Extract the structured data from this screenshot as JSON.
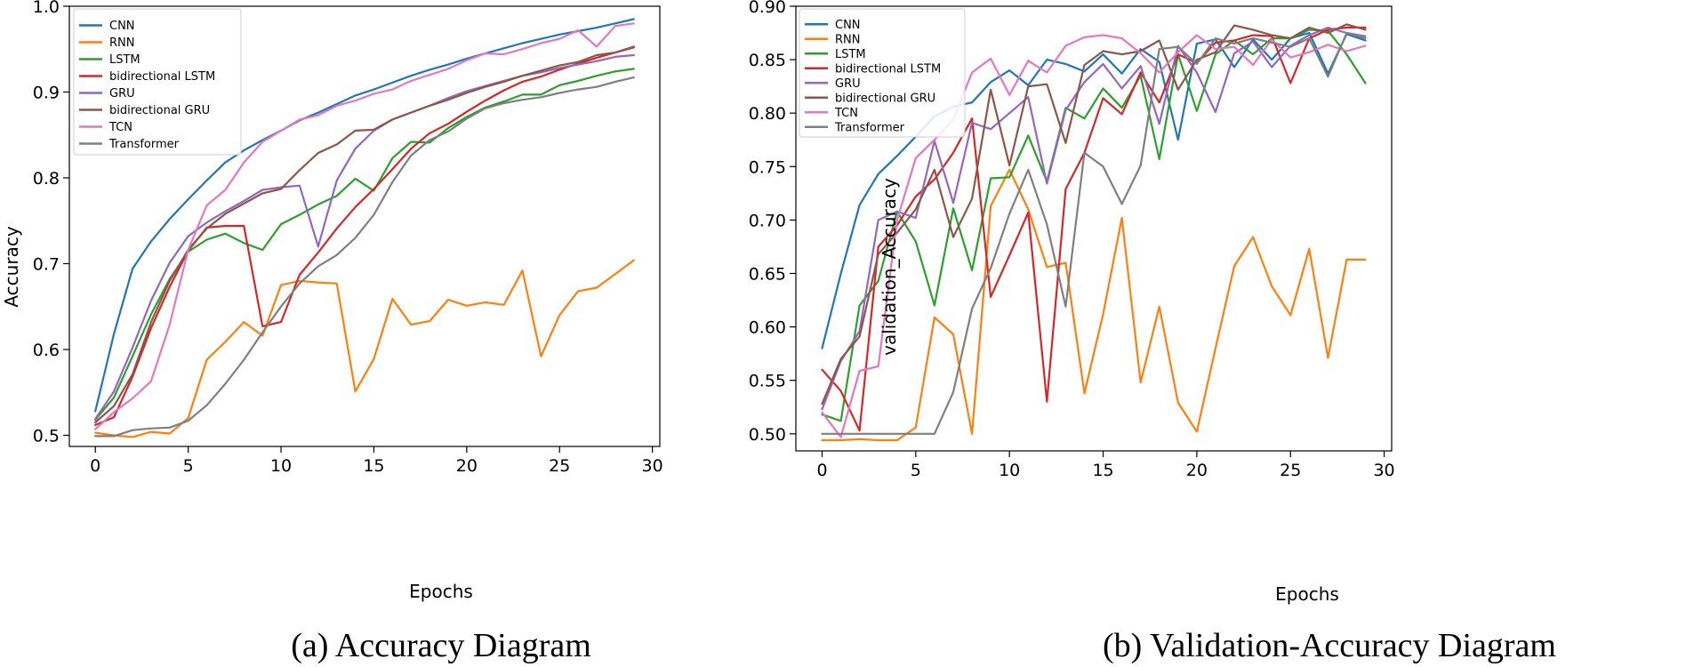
{
  "chart_data": [
    {
      "type": "line",
      "caption": "(a) Accuracy Diagram",
      "xlabel": "Epochs",
      "ylabel": "Accuracy",
      "xlim": [
        -1.4,
        30.4
      ],
      "ylim": [
        0.487,
        1.0
      ],
      "xticks": [
        0,
        5,
        10,
        15,
        20,
        25,
        30
      ],
      "yticks": [
        0.5,
        0.6,
        0.7,
        0.8,
        0.9,
        1.0
      ],
      "ytick_labels": [
        "0.5",
        "0.6",
        "0.7",
        "0.8",
        "0.9",
        "1.0"
      ],
      "legend_position": "top-left",
      "x": [
        0,
        1,
        2,
        3,
        4,
        5,
        6,
        7,
        8,
        9,
        10,
        11,
        12,
        13,
        14,
        15,
        16,
        17,
        18,
        19,
        20,
        21,
        22,
        23,
        24,
        25,
        26,
        27,
        28,
        29
      ],
      "series": [
        {
          "name": "CNN",
          "color": "#1f77b4",
          "values": [
            0.528,
            0.618,
            0.694,
            0.726,
            0.752,
            0.775,
            0.797,
            0.818,
            0.832,
            0.844,
            0.855,
            0.867,
            0.876,
            0.886,
            0.896,
            0.903,
            0.911,
            0.919,
            0.926,
            0.932,
            0.939,
            0.945,
            0.951,
            0.957,
            0.962,
            0.967,
            0.971,
            0.975,
            0.98,
            0.985
          ]
        },
        {
          "name": "RNN",
          "color": "#ff7f0e",
          "values": [
            0.503,
            0.5,
            0.498,
            0.504,
            0.502,
            0.52,
            0.588,
            0.609,
            0.632,
            0.616,
            0.675,
            0.68,
            0.678,
            0.677,
            0.551,
            0.589,
            0.659,
            0.629,
            0.633,
            0.658,
            0.651,
            0.655,
            0.652,
            0.692,
            0.592,
            0.64,
            0.668,
            0.672,
            0.688,
            0.704
          ]
        },
        {
          "name": "LSTM",
          "color": "#2ca02c",
          "values": [
            0.518,
            0.544,
            0.592,
            0.641,
            0.682,
            0.714,
            0.728,
            0.735,
            0.724,
            0.716,
            0.746,
            0.757,
            0.769,
            0.779,
            0.799,
            0.785,
            0.823,
            0.842,
            0.841,
            0.858,
            0.871,
            0.882,
            0.889,
            0.897,
            0.897,
            0.908,
            0.913,
            0.919,
            0.924,
            0.927
          ]
        },
        {
          "name": "bidirectional LSTM",
          "color": "#d62728",
          "values": [
            0.512,
            0.521,
            0.568,
            0.625,
            0.673,
            0.715,
            0.742,
            0.744,
            0.744,
            0.627,
            0.632,
            0.687,
            0.713,
            0.741,
            0.766,
            0.787,
            0.81,
            0.834,
            0.852,
            0.863,
            0.877,
            0.89,
            0.902,
            0.912,
            0.918,
            0.926,
            0.933,
            0.94,
            0.946,
            0.952
          ]
        },
        {
          "name": "GRU",
          "color": "#9467bd",
          "values": [
            0.519,
            0.551,
            0.602,
            0.657,
            0.701,
            0.732,
            0.748,
            0.761,
            0.773,
            0.786,
            0.789,
            0.791,
            0.72,
            0.797,
            0.834,
            0.855,
            0.868,
            0.876,
            0.884,
            0.893,
            0.901,
            0.907,
            0.913,
            0.919,
            0.923,
            0.928,
            0.932,
            0.936,
            0.941,
            0.943
          ]
        },
        {
          "name": "bidirectional GRU",
          "color": "#8c564b",
          "values": [
            0.515,
            0.534,
            0.571,
            0.632,
            0.68,
            0.716,
            0.741,
            0.758,
            0.77,
            0.782,
            0.787,
            0.809,
            0.829,
            0.839,
            0.855,
            0.856,
            0.868,
            0.876,
            0.884,
            0.891,
            0.899,
            0.906,
            0.912,
            0.919,
            0.925,
            0.931,
            0.935,
            0.943,
            0.946,
            0.953
          ]
        },
        {
          "name": "TCN",
          "color": "#e377c2",
          "values": [
            0.507,
            0.527,
            0.543,
            0.563,
            0.629,
            0.716,
            0.768,
            0.786,
            0.818,
            0.842,
            0.855,
            0.868,
            0.873,
            0.884,
            0.89,
            0.898,
            0.903,
            0.913,
            0.92,
            0.927,
            0.937,
            0.945,
            0.944,
            0.95,
            0.957,
            0.962,
            0.972,
            0.953,
            0.977,
            0.98
          ]
        },
        {
          "name": "Transformer",
          "color": "#7f7f7f",
          "values": [
            0.499,
            0.499,
            0.506,
            0.508,
            0.509,
            0.517,
            0.535,
            0.56,
            0.588,
            0.62,
            0.65,
            0.677,
            0.697,
            0.71,
            0.73,
            0.757,
            0.795,
            0.826,
            0.844,
            0.854,
            0.869,
            0.881,
            0.887,
            0.891,
            0.894,
            0.899,
            0.903,
            0.906,
            0.912,
            0.917
          ]
        }
      ]
    },
    {
      "type": "line",
      "caption": "(b) Validation-Accuracy Diagram",
      "xlabel": "Epochs",
      "ylabel": "validation_Accuracy",
      "xlim": [
        -1.4,
        30.4
      ],
      "ylim": [
        0.484,
        0.9
      ],
      "xticks": [
        0,
        5,
        10,
        15,
        20,
        25,
        30
      ],
      "yticks": [
        0.5,
        0.55,
        0.6,
        0.65,
        0.7,
        0.75,
        0.8,
        0.85,
        0.9
      ],
      "ytick_labels": [
        "0.50",
        "0.55",
        "0.60",
        "0.65",
        "0.70",
        "0.75",
        "0.80",
        "0.85",
        "0.90"
      ],
      "legend_position": "top-left",
      "x": [
        0,
        1,
        2,
        3,
        4,
        5,
        6,
        7,
        8,
        9,
        10,
        11,
        12,
        13,
        14,
        15,
        16,
        17,
        18,
        19,
        20,
        21,
        22,
        23,
        24,
        25,
        26,
        27,
        28,
        29
      ],
      "series": [
        {
          "name": "CNN",
          "color": "#1f77b4",
          "values": [
            0.58,
            0.65,
            0.714,
            0.743,
            0.76,
            0.778,
            0.797,
            0.806,
            0.81,
            0.829,
            0.84,
            0.826,
            0.85,
            0.846,
            0.839,
            0.855,
            0.837,
            0.86,
            0.848,
            0.775,
            0.865,
            0.869,
            0.843,
            0.869,
            0.85,
            0.87,
            0.875,
            0.837,
            0.874,
            0.868
          ]
        },
        {
          "name": "RNN",
          "color": "#ff7f0e",
          "values": [
            0.494,
            0.494,
            0.495,
            0.494,
            0.494,
            0.506,
            0.609,
            0.593,
            0.5,
            0.713,
            0.747,
            0.71,
            0.656,
            0.66,
            0.538,
            0.612,
            0.702,
            0.548,
            0.619,
            0.529,
            0.502,
            0.58,
            0.657,
            0.684,
            0.638,
            0.611,
            0.673,
            0.571,
            0.663,
            0.663
          ]
        },
        {
          "name": "LSTM",
          "color": "#2ca02c",
          "values": [
            0.518,
            0.512,
            0.62,
            0.643,
            0.708,
            0.68,
            0.62,
            0.711,
            0.653,
            0.739,
            0.74,
            0.779,
            0.736,
            0.805,
            0.795,
            0.823,
            0.805,
            0.835,
            0.757,
            0.855,
            0.802,
            0.855,
            0.868,
            0.855,
            0.87,
            0.87,
            0.878,
            0.877,
            0.855,
            0.828
          ]
        },
        {
          "name": "bidirectional LSTM",
          "color": "#d62728",
          "values": [
            0.56,
            0.54,
            0.503,
            0.675,
            0.695,
            0.722,
            0.738,
            0.763,
            0.795,
            0.628,
            0.667,
            0.707,
            0.53,
            0.729,
            0.763,
            0.814,
            0.799,
            0.838,
            0.81,
            0.855,
            0.847,
            0.866,
            0.868,
            0.873,
            0.872,
            0.828,
            0.87,
            0.878,
            0.88,
            0.88
          ]
        },
        {
          "name": "GRU",
          "color": "#9467bd",
          "values": [
            0.523,
            0.568,
            0.596,
            0.7,
            0.708,
            0.702,
            0.774,
            0.716,
            0.791,
            0.785,
            0.8,
            0.815,
            0.734,
            0.803,
            0.829,
            0.846,
            0.823,
            0.844,
            0.79,
            0.863,
            0.838,
            0.801,
            0.856,
            0.867,
            0.843,
            0.863,
            0.873,
            0.88,
            0.875,
            0.872
          ]
        },
        {
          "name": "bidirectional GRU",
          "color": "#8c564b",
          "values": [
            0.528,
            0.57,
            0.591,
            0.668,
            0.688,
            0.71,
            0.747,
            0.684,
            0.72,
            0.822,
            0.751,
            0.825,
            0.827,
            0.772,
            0.845,
            0.858,
            0.855,
            0.858,
            0.868,
            0.822,
            0.85,
            0.857,
            0.882,
            0.878,
            0.873,
            0.87,
            0.88,
            0.875,
            0.883,
            0.878
          ]
        },
        {
          "name": "TCN",
          "color": "#e377c2",
          "values": [
            0.52,
            0.497,
            0.559,
            0.563,
            0.7,
            0.758,
            0.775,
            0.794,
            0.838,
            0.851,
            0.817,
            0.849,
            0.838,
            0.863,
            0.871,
            0.873,
            0.87,
            0.856,
            0.838,
            0.857,
            0.873,
            0.86,
            0.862,
            0.845,
            0.869,
            0.852,
            0.857,
            0.864,
            0.858,
            0.863
          ]
        },
        {
          "name": "Transformer",
          "color": "#7f7f7f",
          "values": [
            0.5,
            0.5,
            0.5,
            0.5,
            0.5,
            0.5,
            0.5,
            0.539,
            0.617,
            0.655,
            0.706,
            0.747,
            0.696,
            0.619,
            0.763,
            0.75,
            0.715,
            0.751,
            0.86,
            0.862,
            0.846,
            0.87,
            0.865,
            0.87,
            0.866,
            0.862,
            0.87,
            0.834,
            0.875,
            0.87
          ]
        }
      ]
    }
  ]
}
